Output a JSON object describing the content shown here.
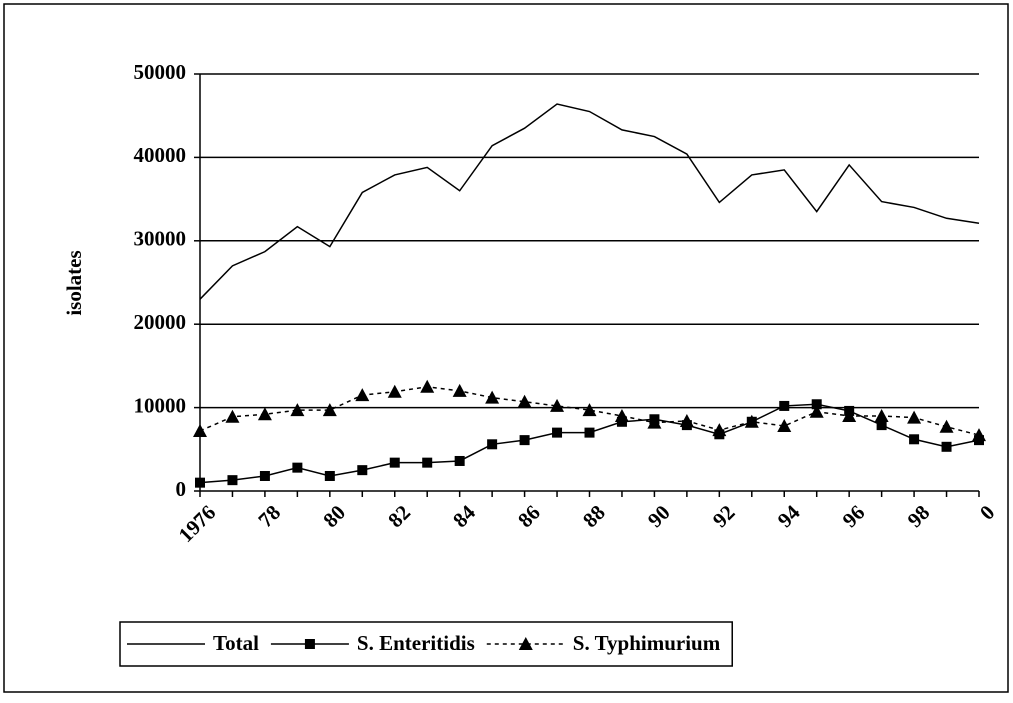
{
  "chart_data": {
    "type": "line",
    "y_label": "isolates",
    "categories": [
      "1976",
      null,
      "78",
      null,
      "80",
      null,
      "82",
      null,
      "84",
      null,
      "86",
      null,
      "88",
      null,
      "90",
      null,
      "92",
      null,
      "94",
      null,
      "96",
      null,
      "98",
      null,
      "0"
    ],
    "series": [
      {
        "name": "Total",
        "color": "#000000",
        "marker": "none",
        "dash": false,
        "values": [
          23000,
          27000,
          28700,
          31700,
          29300,
          35800,
          37900,
          38800,
          36000,
          41400,
          43500,
          46400,
          45500,
          43300,
          42500,
          40400,
          34600,
          37900,
          38500,
          33500,
          39100,
          34700,
          34000,
          32700,
          32100
        ]
      },
      {
        "name": "S. Enteritidis",
        "color": "#000000",
        "marker": "square",
        "dash": false,
        "values": [
          1000,
          1300,
          1800,
          2800,
          1800,
          2500,
          3400,
          3400,
          3600,
          5600,
          6100,
          7000,
          7000,
          8300,
          8600,
          7900,
          6800,
          8300,
          10200,
          10400,
          9600,
          7900,
          6200,
          5300,
          6100
        ]
      },
      {
        "name": "S. Typhimurium",
        "color": "#000000",
        "marker": "triangle",
        "dash": true,
        "values": [
          7200,
          8900,
          9200,
          9700,
          9700,
          11500,
          11900,
          12500,
          12000,
          11200,
          10700,
          10200,
          9700,
          9000,
          8200,
          8400,
          7300,
          8300,
          7800,
          9500,
          9000,
          9000,
          8800,
          7700,
          6700
        ]
      }
    ],
    "ylim": [
      0,
      50000
    ],
    "yticks": [
      0,
      10000,
      20000,
      30000,
      40000,
      50000
    ],
    "grid": true,
    "legend": "bottom"
  }
}
